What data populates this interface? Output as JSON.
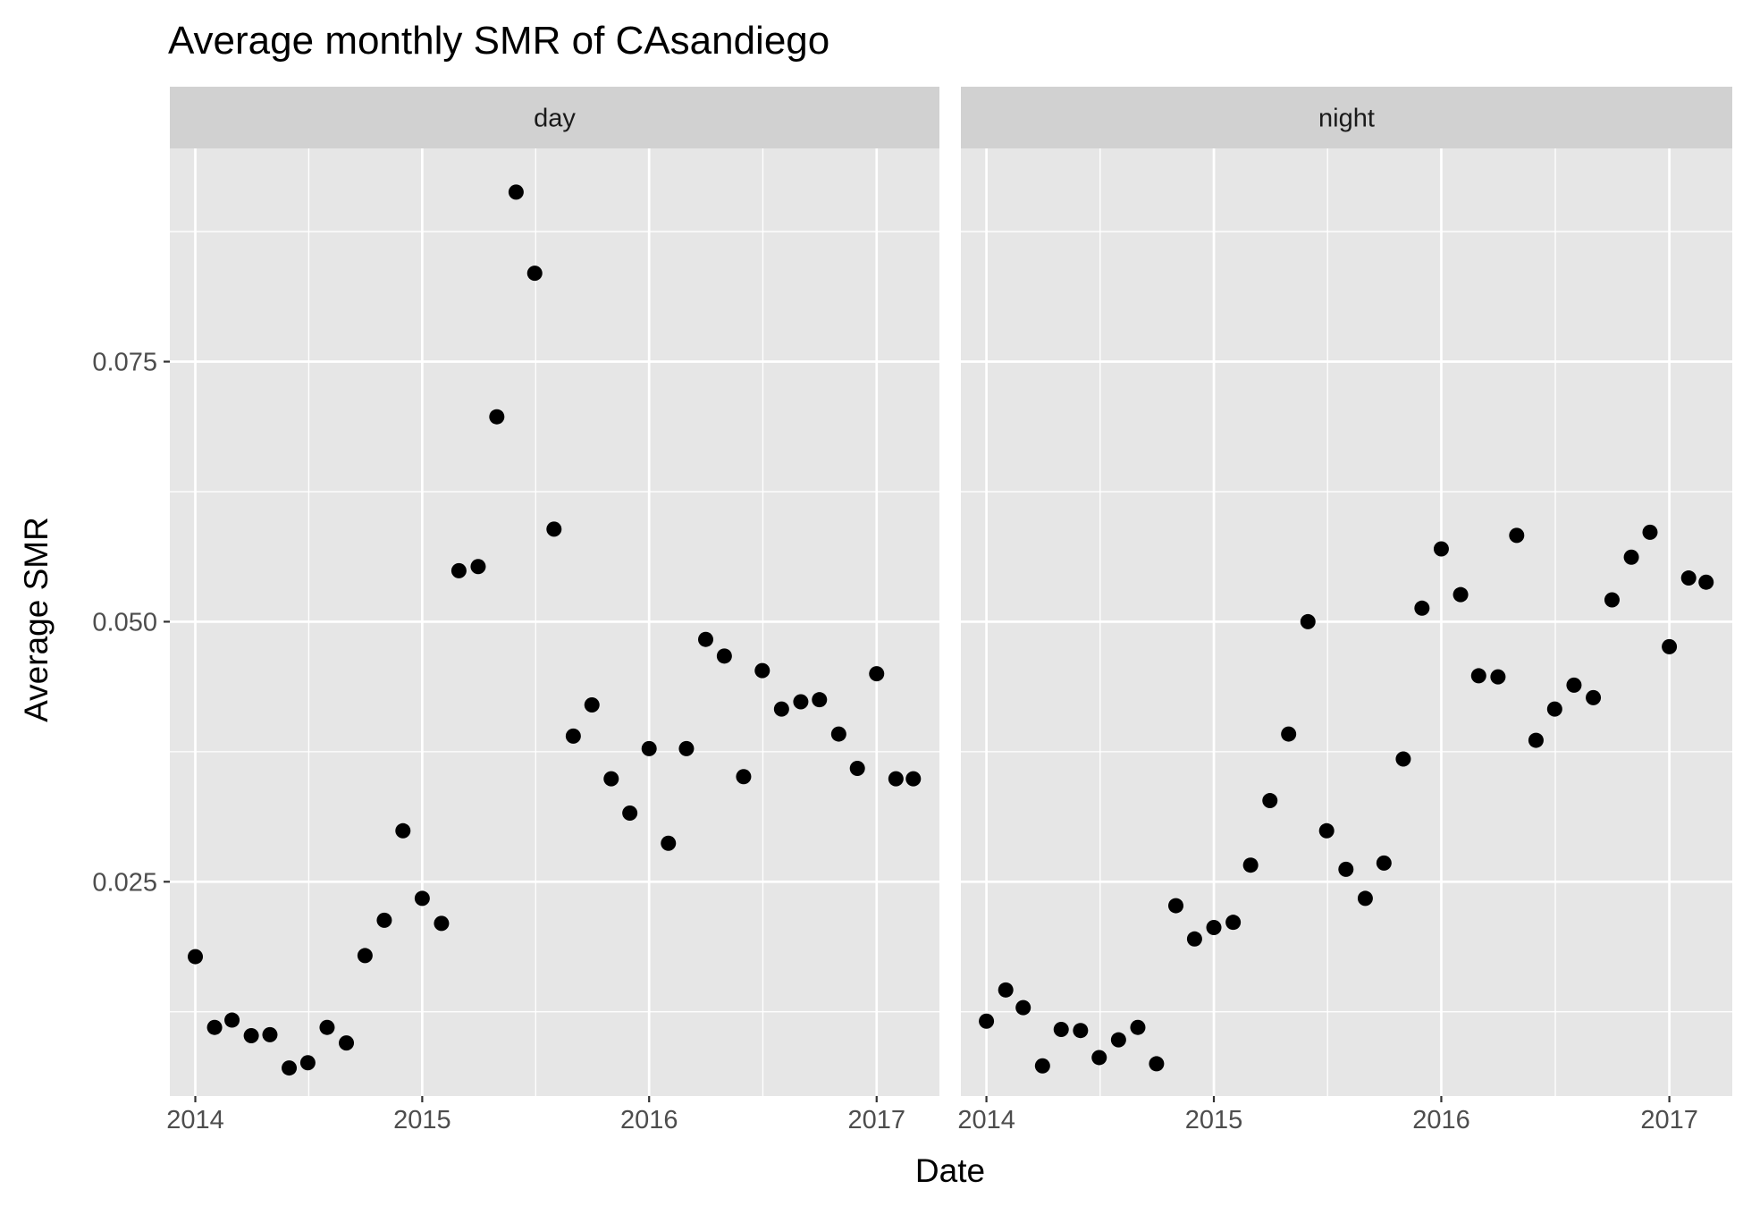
{
  "chart_data": {
    "type": "scatter",
    "title": "Average monthly SMR of CAsandiego",
    "xlabel": "Date",
    "ylabel": "Average SMR",
    "x_ticks": [
      "2014",
      "2015",
      "2016",
      "2017"
    ],
    "y_ticks": [
      "0.025",
      "0.050",
      "0.075"
    ],
    "y_tick_values": [
      0.025,
      0.05,
      0.075
    ],
    "ylim": [
      0.0044,
      0.0955
    ],
    "xlim": [
      "2013-11-21",
      "2017-04-12"
    ],
    "grid": true,
    "point_color": "#000000",
    "panel_background": "#e6e6e6",
    "strip_background": "#d1d1d1",
    "facets": [
      {
        "label": "day",
        "points": [
          {
            "x": "2014-01-01",
            "y": 0.0178
          },
          {
            "x": "2014-02-01",
            "y": 0.011
          },
          {
            "x": "2014-03-01",
            "y": 0.0117
          },
          {
            "x": "2014-04-01",
            "y": 0.0102
          },
          {
            "x": "2014-05-01",
            "y": 0.0103
          },
          {
            "x": "2014-06-01",
            "y": 0.0071
          },
          {
            "x": "2014-07-01",
            "y": 0.0076
          },
          {
            "x": "2014-08-01",
            "y": 0.011
          },
          {
            "x": "2014-09-01",
            "y": 0.0095
          },
          {
            "x": "2014-10-01",
            "y": 0.0179
          },
          {
            "x": "2014-11-01",
            "y": 0.0213
          },
          {
            "x": "2014-12-01",
            "y": 0.0299
          },
          {
            "x": "2015-01-01",
            "y": 0.0234
          },
          {
            "x": "2015-02-01",
            "y": 0.021
          },
          {
            "x": "2015-03-01",
            "y": 0.0549
          },
          {
            "x": "2015-04-01",
            "y": 0.0553
          },
          {
            "x": "2015-05-01",
            "y": 0.0697
          },
          {
            "x": "2015-06-01",
            "y": 0.0913
          },
          {
            "x": "2015-07-01",
            "y": 0.0835
          },
          {
            "x": "2015-08-01",
            "y": 0.0589
          },
          {
            "x": "2015-09-01",
            "y": 0.039
          },
          {
            "x": "2015-10-01",
            "y": 0.042
          },
          {
            "x": "2015-11-01",
            "y": 0.0349
          },
          {
            "x": "2015-12-01",
            "y": 0.0316
          },
          {
            "x": "2016-01-01",
            "y": 0.0378
          },
          {
            "x": "2016-02-01",
            "y": 0.0287
          },
          {
            "x": "2016-03-01",
            "y": 0.0378
          },
          {
            "x": "2016-04-01",
            "y": 0.0483
          },
          {
            "x": "2016-05-01",
            "y": 0.0467
          },
          {
            "x": "2016-06-01",
            "y": 0.0351
          },
          {
            "x": "2016-07-01",
            "y": 0.0453
          },
          {
            "x": "2016-08-01",
            "y": 0.0416
          },
          {
            "x": "2016-09-01",
            "y": 0.0423
          },
          {
            "x": "2016-10-01",
            "y": 0.0425
          },
          {
            "x": "2016-11-01",
            "y": 0.0392
          },
          {
            "x": "2016-12-01",
            "y": 0.0359
          },
          {
            "x": "2017-01-01",
            "y": 0.045
          },
          {
            "x": "2017-02-01",
            "y": 0.0349
          },
          {
            "x": "2017-03-01",
            "y": 0.0349
          }
        ]
      },
      {
        "label": "night",
        "points": [
          {
            "x": "2014-01-01",
            "y": 0.0116
          },
          {
            "x": "2014-02-01",
            "y": 0.0146
          },
          {
            "x": "2014-03-01",
            "y": 0.0129
          },
          {
            "x": "2014-04-01",
            "y": 0.0073
          },
          {
            "x": "2014-05-01",
            "y": 0.0108
          },
          {
            "x": "2014-06-01",
            "y": 0.0107
          },
          {
            "x": "2014-07-01",
            "y": 0.0081
          },
          {
            "x": "2014-08-01",
            "y": 0.0098
          },
          {
            "x": "2014-09-01",
            "y": 0.011
          },
          {
            "x": "2014-10-01",
            "y": 0.0075
          },
          {
            "x": "2014-11-01",
            "y": 0.0227
          },
          {
            "x": "2014-12-01",
            "y": 0.0195
          },
          {
            "x": "2015-01-01",
            "y": 0.0206
          },
          {
            "x": "2015-02-01",
            "y": 0.0211
          },
          {
            "x": "2015-03-01",
            "y": 0.0266
          },
          {
            "x": "2015-04-01",
            "y": 0.0328
          },
          {
            "x": "2015-05-01",
            "y": 0.0392
          },
          {
            "x": "2015-06-01",
            "y": 0.05
          },
          {
            "x": "2015-07-01",
            "y": 0.0299
          },
          {
            "x": "2015-08-01",
            "y": 0.0262
          },
          {
            "x": "2015-09-01",
            "y": 0.0234
          },
          {
            "x": "2015-10-01",
            "y": 0.0268
          },
          {
            "x": "2015-11-01",
            "y": 0.0368
          },
          {
            "x": "2015-12-01",
            "y": 0.0513
          },
          {
            "x": "2016-01-01",
            "y": 0.057
          },
          {
            "x": "2016-02-01",
            "y": 0.0526
          },
          {
            "x": "2016-03-01",
            "y": 0.0448
          },
          {
            "x": "2016-04-01",
            "y": 0.0447
          },
          {
            "x": "2016-05-01",
            "y": 0.0583
          },
          {
            "x": "2016-06-01",
            "y": 0.0386
          },
          {
            "x": "2016-07-01",
            "y": 0.0416
          },
          {
            "x": "2016-08-01",
            "y": 0.0439
          },
          {
            "x": "2016-09-01",
            "y": 0.0427
          },
          {
            "x": "2016-10-01",
            "y": 0.0521
          },
          {
            "x": "2016-11-01",
            "y": 0.0562
          },
          {
            "x": "2016-12-01",
            "y": 0.0586
          },
          {
            "x": "2017-01-01",
            "y": 0.0476
          },
          {
            "x": "2017-02-01",
            "y": 0.0542
          },
          {
            "x": "2017-03-01",
            "y": 0.0538
          }
        ]
      }
    ]
  }
}
